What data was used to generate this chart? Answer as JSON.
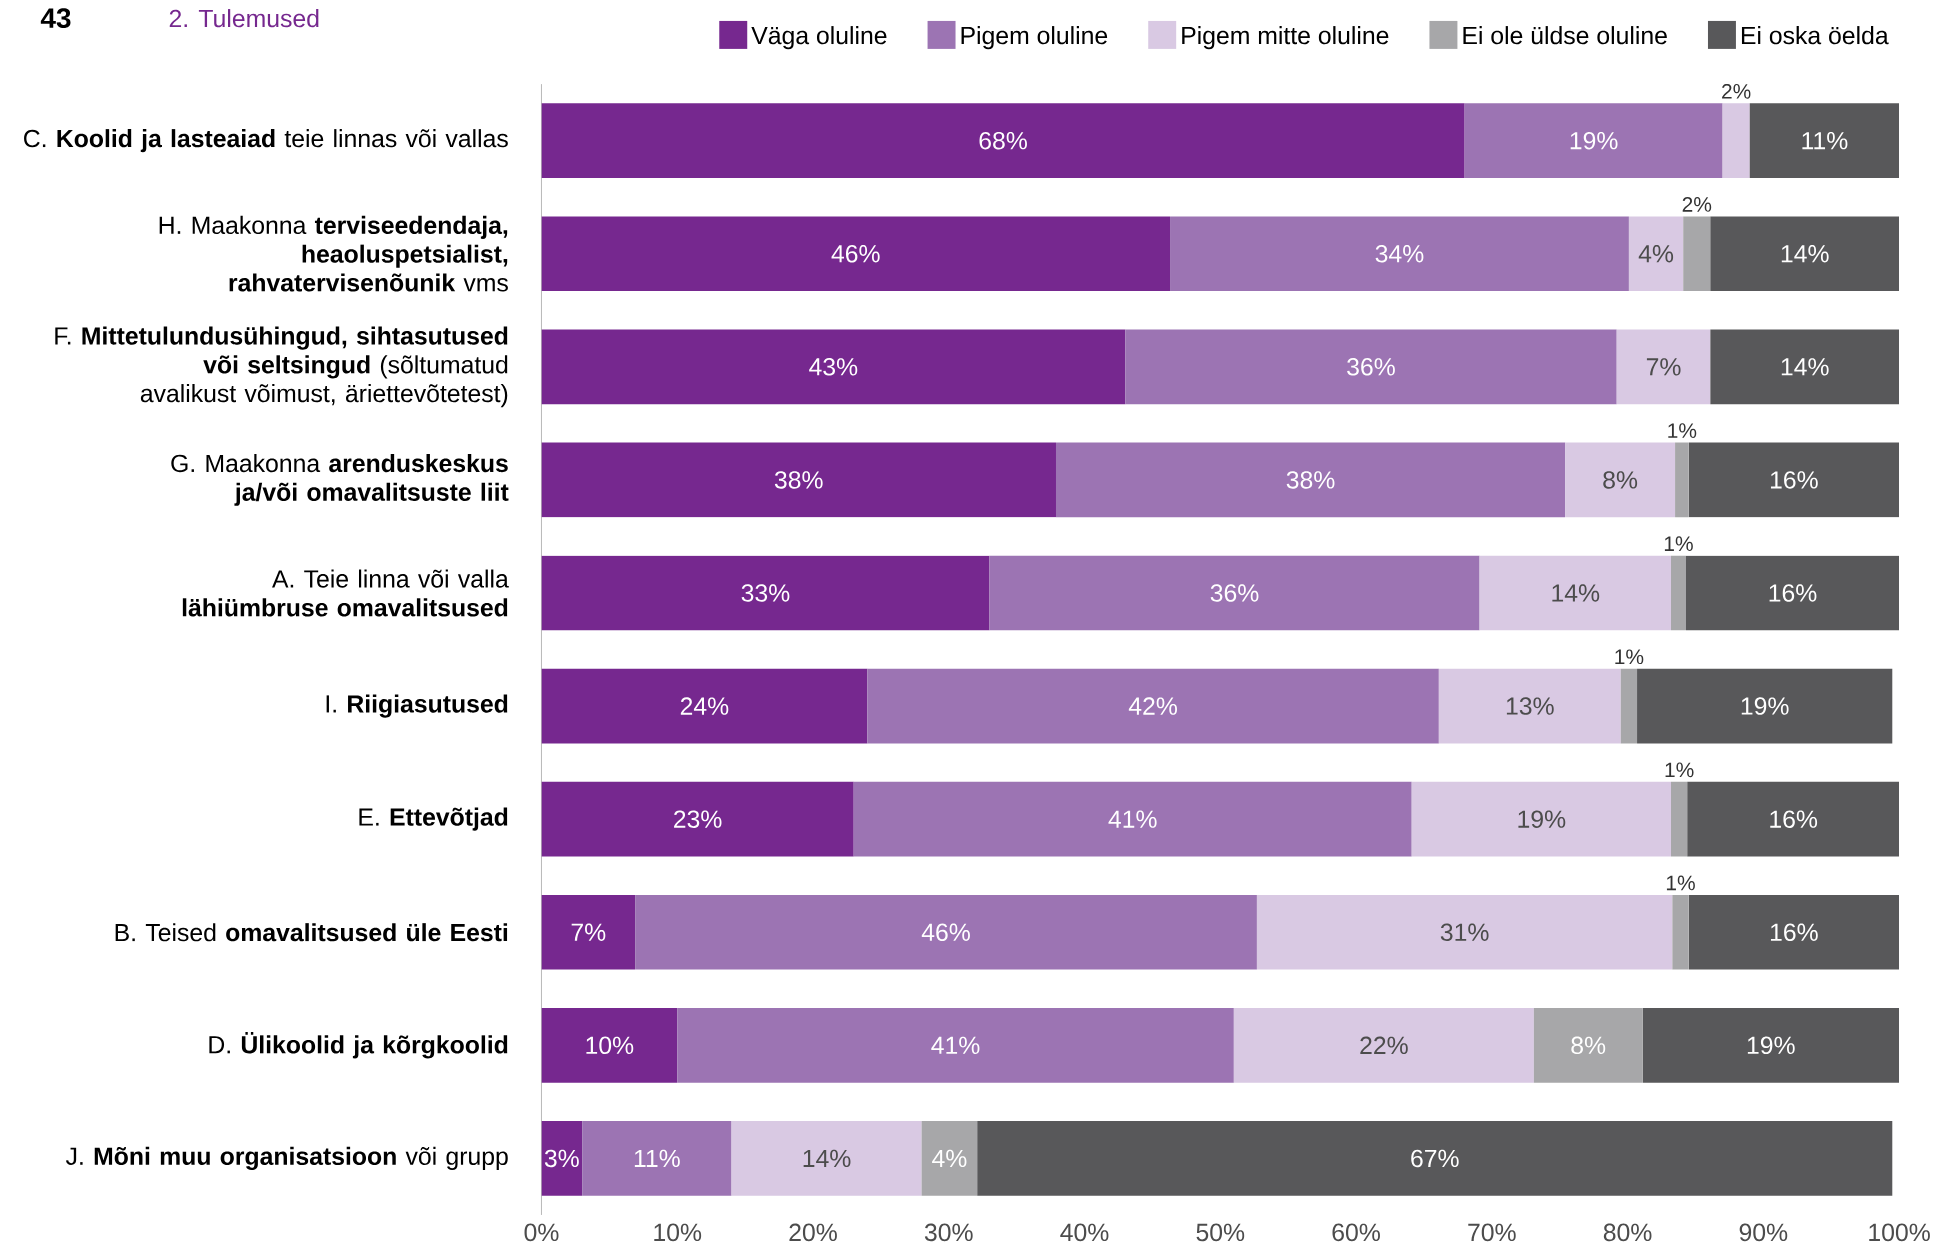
{
  "chart_data": {
    "type": "bar",
    "orientation": "horizontal",
    "stacked": true,
    "legend": "top",
    "data_labels": false,
    "annotations": [
      "43",
      "2. Tulemused"
    ],
    "categories": [
      "C. **Koolid ja lasteaiad** teie linnas või vallas",
      "H. Maakonna **terviseedendaja, heaoluspetsialist, rahvatervisenõunik** vms",
      "F. **Mittetulundusühingud, sihtasutused või seltsingud** (sõltumatud avalikust võimust, äriettevõtetest)",
      "G. Maakonna **arenduskeskus ja/või omavalitsuste liit**",
      "A. Teie linna või valla **lähiümbruse omavalitsused**",
      "I. **Riigiasutused**",
      "E. **Ettevõtjad**",
      "B. Teised **omavalitsused üle Eesti**",
      "D. **Ülikoolid ja kõrgkoolid**",
      "J. **Mõni muu organisatsioon** või grupp"
    ],
    "xlim": [
      0,
      100
    ],
    "xticks": [
      {
        "value": 0,
        "label": "0%"
      },
      {
        "value": 10,
        "label": "10%"
      },
      {
        "value": 20,
        "label": "20%"
      },
      {
        "value": 30,
        "label": "30%"
      },
      {
        "value": 40,
        "label": "40%"
      },
      {
        "value": 50,
        "label": "50%"
      },
      {
        "value": 60,
        "label": "60%"
      },
      {
        "value": 70,
        "label": "70%"
      },
      {
        "value": 80,
        "label": "80%"
      },
      {
        "value": 90,
        "label": "90%"
      },
      {
        "value": 100,
        "label": "100%"
      }
    ],
    "series": [
      {
        "name": "Väga oluline",
        "color": "#76288f",
        "values": [
          68,
          46.3,
          43,
          37.9,
          33,
          24,
          23,
          6.9,
          10,
          3
        ],
        "value_labels": [
          "68%",
          "46%",
          "43%",
          "38%",
          "33%",
          "24%",
          "23%",
          "7%",
          "10%",
          "3%"
        ]
      },
      {
        "name": "Pigem oluline",
        "color": "#9c74b3",
        "values": [
          19,
          33.8,
          36.2,
          37.5,
          36.1,
          42.1,
          41.1,
          45.8,
          41,
          11
        ],
        "value_labels": [
          "19%",
          "34%",
          "36%",
          "38%",
          "36%",
          "42%",
          "41%",
          "46%",
          "41%",
          "11%"
        ]
      },
      {
        "name": "Pigem mitte oluline",
        "color": "#d9c9e3",
        "values": [
          2,
          4,
          6.9,
          8.1,
          14.1,
          13.4,
          19.1,
          30.6,
          22.1,
          14
        ],
        "value_labels": [
          "2%",
          "4%",
          "7%",
          "8%",
          "14%",
          "13%",
          "19%",
          "31%",
          "22%",
          "14%"
        ]
      },
      {
        "name": "Ei ole üldse oluline",
        "color": "#a7a7a9",
        "values": [
          null,
          2,
          null,
          1,
          1.1,
          1.2,
          1.2,
          1.2,
          8,
          4.1
        ],
        "value_labels": [
          null,
          "2%",
          null,
          "1%",
          "1%",
          "1%",
          "1%",
          "1%",
          "8%",
          "4%"
        ]
      },
      {
        "name": "Ei oska öelda",
        "color": "#58585a",
        "values": [
          11,
          13.9,
          13.9,
          15.5,
          15.7,
          18.8,
          15.6,
          15.5,
          18.9,
          67.4
        ],
        "value_labels": [
          "11%",
          "14%",
          "14%",
          "16%",
          "16%",
          "19%",
          "16%",
          "16%",
          "19%",
          "67%"
        ]
      }
    ]
  }
}
